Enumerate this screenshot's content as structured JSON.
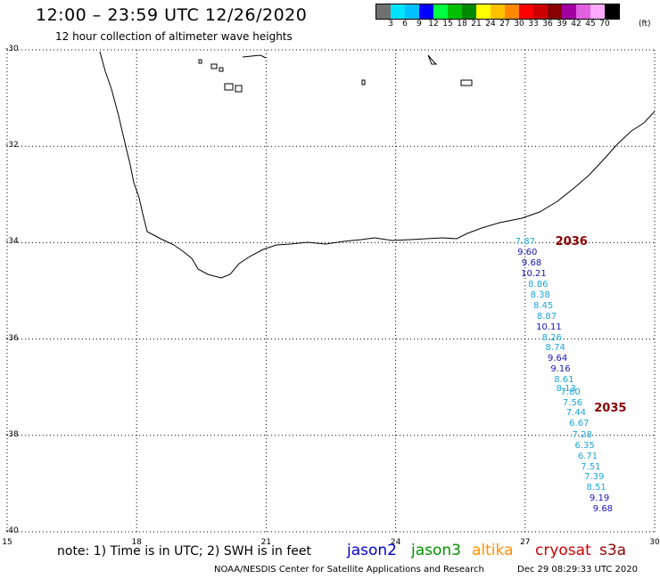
{
  "header": {
    "title": "12:00 – 23:59 UTC 12/26/2020",
    "subtitle": "12 hour collection of altimeter wave heights"
  },
  "color_scale": {
    "labels": [
      "3",
      "6",
      "9",
      "12",
      "15",
      "18",
      "21",
      "24",
      "27",
      "30",
      "33",
      "36",
      "39",
      "42",
      "45",
      "70"
    ],
    "unit": "(ft)",
    "colors": [
      "#707070",
      "#00e5ff",
      "#00c0ff",
      "#0000ff",
      "#00ff40",
      "#00c000",
      "#008800",
      "#ffff00",
      "#ffc000",
      "#ff8800",
      "#ff0000",
      "#cc0000",
      "#880000",
      "#a000a0",
      "#e060e0",
      "#ffaaff",
      "#000000"
    ]
  },
  "map": {
    "lat_labels": [
      "-30",
      "-32",
      "-34",
      "-36",
      "-38",
      "-40"
    ],
    "lon_labels": [
      "15",
      "18",
      "21",
      "24",
      "27",
      "30"
    ],
    "passes": [
      {
        "id": "2036",
        "lon": 27.7,
        "lat": -34.0
      },
      {
        "id": "2035",
        "lon": 28.6,
        "lat": -37.45
      }
    ],
    "wave_colors": {
      "light": "#1aa6d8",
      "dark": "#1414b4"
    },
    "wave_heights": [
      {
        "text": "7.87",
        "lon": 27.0,
        "lat": -34.0,
        "c": "light"
      },
      {
        "text": "9.60",
        "lon": 27.05,
        "lat": -34.22,
        "c": "dark"
      },
      {
        "text": "9.68",
        "lon": 27.15,
        "lat": -34.44,
        "c": "dark"
      },
      {
        "text": "10.21",
        "lon": 27.2,
        "lat": -34.66,
        "c": "dark"
      },
      {
        "text": "8.86",
        "lon": 27.3,
        "lat": -34.88,
        "c": "light"
      },
      {
        "text": "8.38",
        "lon": 27.35,
        "lat": -35.1,
        "c": "light"
      },
      {
        "text": "8.45",
        "lon": 27.42,
        "lat": -35.32,
        "c": "light"
      },
      {
        "text": "8.87",
        "lon": 27.5,
        "lat": -35.54,
        "c": "light"
      },
      {
        "text": "10.11",
        "lon": 27.55,
        "lat": -35.76,
        "c": "dark"
      },
      {
        "text": "8.26",
        "lon": 27.62,
        "lat": -35.98,
        "c": "light"
      },
      {
        "text": "8.74",
        "lon": 27.7,
        "lat": -36.2,
        "c": "light"
      },
      {
        "text": "9.64",
        "lon": 27.75,
        "lat": -36.42,
        "c": "dark"
      },
      {
        "text": "9.16",
        "lon": 27.82,
        "lat": -36.64,
        "c": "dark"
      },
      {
        "text": "8.61",
        "lon": 27.9,
        "lat": -36.86,
        "c": "light"
      },
      {
        "text": "8.13",
        "lon": 27.95,
        "lat": -37.05,
        "c": "light"
      },
      {
        "text": "7.80",
        "lon": 28.05,
        "lat": -37.11,
        "c": "light"
      },
      {
        "text": "7.56",
        "lon": 28.1,
        "lat": -37.33,
        "c": "light"
      },
      {
        "text": "7.44",
        "lon": 28.18,
        "lat": -37.55,
        "c": "light"
      },
      {
        "text": "6.67",
        "lon": 28.25,
        "lat": -37.77,
        "c": "light"
      },
      {
        "text": "7.28",
        "lon": 28.32,
        "lat": -38.0,
        "c": "light"
      },
      {
        "text": "6.35",
        "lon": 28.38,
        "lat": -38.22,
        "c": "light"
      },
      {
        "text": "6.71",
        "lon": 28.45,
        "lat": -38.44,
        "c": "light"
      },
      {
        "text": "7.51",
        "lon": 28.52,
        "lat": -38.66,
        "c": "light"
      },
      {
        "text": "7.39",
        "lon": 28.6,
        "lat": -38.88,
        "c": "light"
      },
      {
        "text": "8.51",
        "lon": 28.65,
        "lat": -39.1,
        "c": "light"
      },
      {
        "text": "9.19",
        "lon": 28.72,
        "lat": -39.32,
        "c": "dark"
      },
      {
        "text": "9.68",
        "lon": 28.8,
        "lat": -39.54,
        "c": "dark"
      }
    ]
  },
  "footer": {
    "note": "note: 1) Time is in UTC; 2) SWH is in feet",
    "legend": [
      {
        "label": "jason2",
        "color": "#0000cc"
      },
      {
        "label": "jason3",
        "color": "#009000"
      },
      {
        "label": "altika",
        "color": "#ff9000"
      },
      {
        "label": "cryosat",
        "color": "#cc0000"
      },
      {
        "label": "s3a",
        "color": "#8b0000"
      }
    ],
    "credit": "NOAA/NESDIS Center for Satellite Applications and Research",
    "timestamp": "Dec 29 08:29:33 UTC 2020"
  }
}
